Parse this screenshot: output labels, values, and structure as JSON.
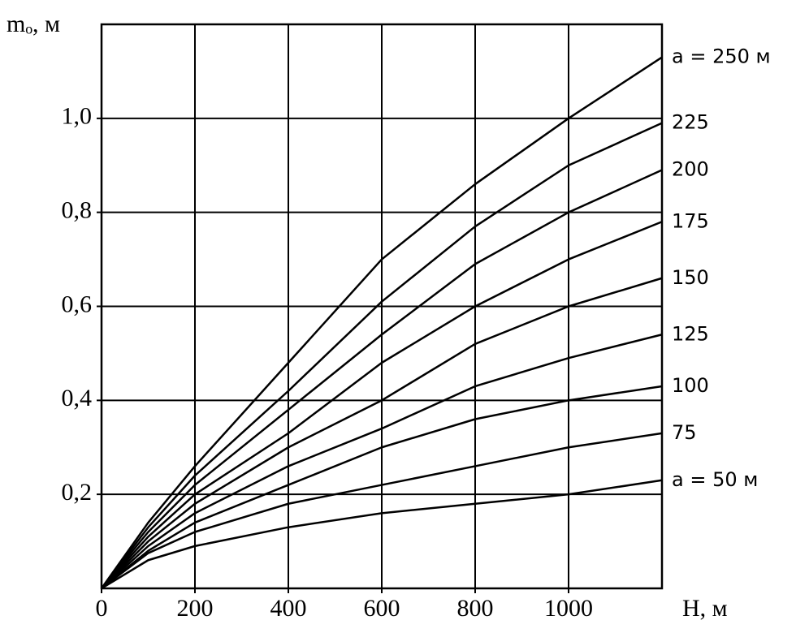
{
  "chart_data": {
    "type": "line",
    "x_label": "H, м",
    "y_label": "mₒ, м",
    "x": [
      0,
      100,
      200,
      400,
      600,
      800,
      1000,
      1200
    ],
    "series": [
      {
        "name": "a = 250 м",
        "color": "#000000",
        "values": [
          0,
          0.14,
          0.26,
          0.48,
          0.7,
          0.86,
          1.0,
          1.13
        ]
      },
      {
        "name": "225",
        "color": "#000000",
        "values": [
          0,
          0.13,
          0.24,
          0.42,
          0.61,
          0.77,
          0.9,
          0.99
        ]
      },
      {
        "name": "200",
        "color": "#000000",
        "values": [
          0,
          0.12,
          0.22,
          0.38,
          0.54,
          0.69,
          0.8,
          0.89
        ]
      },
      {
        "name": "175",
        "color": "#000000",
        "values": [
          0,
          0.11,
          0.2,
          0.33,
          0.48,
          0.6,
          0.7,
          0.78
        ]
      },
      {
        "name": "150",
        "color": "#000000",
        "values": [
          0,
          0.1,
          0.18,
          0.3,
          0.4,
          0.52,
          0.6,
          0.66
        ]
      },
      {
        "name": "125",
        "color": "#000000",
        "values": [
          0,
          0.09,
          0.16,
          0.26,
          0.34,
          0.43,
          0.49,
          0.54
        ]
      },
      {
        "name": "100",
        "color": "#000000",
        "values": [
          0,
          0.08,
          0.14,
          0.22,
          0.3,
          0.36,
          0.4,
          0.43
        ]
      },
      {
        "name": "75",
        "color": "#000000",
        "values": [
          0,
          0.075,
          0.12,
          0.18,
          0.22,
          0.26,
          0.3,
          0.33
        ]
      },
      {
        "name": "a = 50 м",
        "color": "#000000",
        "values": [
          0,
          0.06,
          0.09,
          0.13,
          0.16,
          0.18,
          0.2,
          0.23
        ]
      }
    ],
    "xlim": [
      0,
      1200
    ],
    "xticks": [
      0,
      200,
      400,
      600,
      800,
      1000
    ],
    "ylim": [
      0,
      1.2
    ],
    "yticks": [
      {
        "value": 0.2,
        "label": "0,2"
      },
      {
        "value": 0.4,
        "label": "0,4"
      },
      {
        "value": 0.6,
        "label": "0,6"
      },
      {
        "value": 0.8,
        "label": "0,8"
      },
      {
        "value": 1.0,
        "label": "1,0"
      }
    ],
    "grid": true
  }
}
